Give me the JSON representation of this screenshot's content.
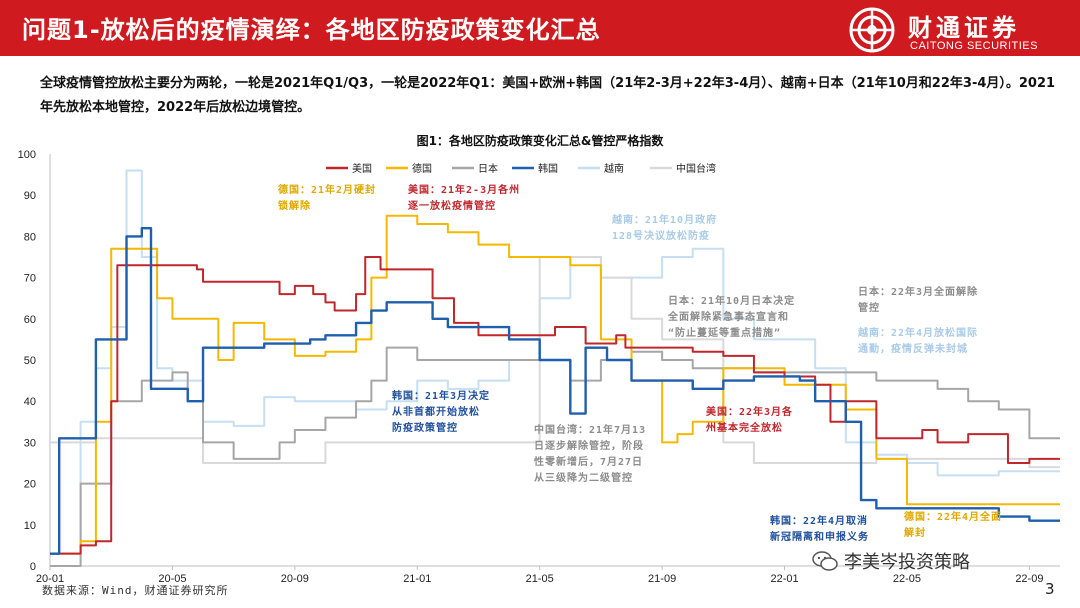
{
  "header": {
    "title": "问题1-放松后的疫情演绎：各地区防疫政策变化汇总",
    "logo_name": "财通证券",
    "logo_en": "CAITONG SECURITIES"
  },
  "summary": "全球疫情管控放松主要分为两轮，一轮是2021年Q1/Q3，一轮是2022年Q1：美国+欧洲+韩国（21年2-3月+22年3-4月）、越南+日本（21年10月和22年3-4月）。2021年先放松本地管控，2022年后放松边境管控。",
  "colors": {
    "header_bg": "#cf1a1f",
    "usa": "#c0272d",
    "germany": "#f5b800",
    "japan": "#a6a6a6",
    "korea": "#1f5fad",
    "vietnam": "#c6dff3",
    "taiwan": "#d9d9d9",
    "annotation_red": "#c0272d",
    "annotation_gold": "#e0a800",
    "annotation_gray": "#8c8c8c",
    "annotation_blue": "#1f4f9a",
    "annotation_lightblue": "#a9cbe8"
  },
  "chart_data": {
    "type": "line",
    "title": "图1：各地区防疫政策变化汇总&管控严格指数",
    "x_ticks": [
      "20-01",
      "20-05",
      "20-09",
      "21-01",
      "21-05",
      "21-09",
      "22-01",
      "22-05",
      "22-09"
    ],
    "ylim": [
      0,
      100
    ],
    "y_ticks": [
      "0",
      "10",
      "20",
      "30",
      "40",
      "50",
      "60",
      "70",
      "80",
      "90",
      "100"
    ],
    "x_range_months": [
      "2020-01",
      "2022-10"
    ],
    "grid": false,
    "legend_position": "top",
    "series": [
      {
        "name": "美国",
        "color_key": "usa",
        "points": [
          [
            0,
            3
          ],
          [
            1,
            5
          ],
          [
            1.5,
            6
          ],
          [
            2,
            40
          ],
          [
            2.2,
            73
          ],
          [
            4,
            73
          ],
          [
            4.8,
            72
          ],
          [
            5,
            69
          ],
          [
            7,
            69
          ],
          [
            7.5,
            66
          ],
          [
            8,
            68
          ],
          [
            8.6,
            66
          ],
          [
            9,
            64
          ],
          [
            9.3,
            62
          ],
          [
            9.8,
            62
          ],
          [
            10,
            66
          ],
          [
            10.3,
            75
          ],
          [
            10.8,
            72
          ],
          [
            12,
            72
          ],
          [
            12.5,
            65
          ],
          [
            13.2,
            59
          ],
          [
            14,
            56
          ],
          [
            16,
            56
          ],
          [
            16.5,
            58
          ],
          [
            17.5,
            54
          ],
          [
            18.5,
            56
          ],
          [
            18.8,
            53
          ],
          [
            20,
            53
          ],
          [
            21,
            52
          ],
          [
            22,
            51
          ],
          [
            23,
            47
          ],
          [
            24,
            46
          ],
          [
            25,
            44
          ],
          [
            25.5,
            35
          ],
          [
            26,
            40
          ],
          [
            27,
            31
          ],
          [
            28,
            31
          ],
          [
            28.5,
            33
          ],
          [
            29,
            30
          ],
          [
            30,
            32
          ],
          [
            31,
            32
          ],
          [
            31.3,
            25
          ],
          [
            32,
            26
          ],
          [
            33,
            26
          ]
        ]
      },
      {
        "name": "德国",
        "color_key": "germany",
        "points": [
          [
            0,
            3
          ],
          [
            1,
            6
          ],
          [
            1.5,
            35
          ],
          [
            2,
            77
          ],
          [
            3,
            77
          ],
          [
            3.5,
            65
          ],
          [
            4,
            60
          ],
          [
            5,
            60
          ],
          [
            5.5,
            50
          ],
          [
            6,
            59
          ],
          [
            7,
            55
          ],
          [
            8,
            51
          ],
          [
            9,
            52
          ],
          [
            10,
            55
          ],
          [
            10.5,
            70
          ],
          [
            11,
            85
          ],
          [
            12,
            83
          ],
          [
            13,
            81
          ],
          [
            14,
            78
          ],
          [
            15,
            75
          ],
          [
            16,
            75
          ],
          [
            17,
            73
          ],
          [
            18,
            55
          ],
          [
            19,
            45
          ],
          [
            20,
            30
          ],
          [
            20.5,
            32
          ],
          [
            21,
            35
          ],
          [
            22,
            48
          ],
          [
            23,
            48
          ],
          [
            24,
            44
          ],
          [
            25,
            44
          ],
          [
            26,
            38
          ],
          [
            27,
            26
          ],
          [
            28,
            15
          ],
          [
            32,
            15
          ],
          [
            32.5,
            15
          ],
          [
            33,
            15
          ]
        ]
      },
      {
        "name": "日本",
        "color_key": "japan",
        "points": [
          [
            0,
            0
          ],
          [
            1,
            20
          ],
          [
            2,
            40
          ],
          [
            3,
            45
          ],
          [
            4,
            47
          ],
          [
            4.5,
            40
          ],
          [
            5,
            30
          ],
          [
            6,
            26
          ],
          [
            7,
            26
          ],
          [
            7.5,
            30
          ],
          [
            8,
            33
          ],
          [
            9,
            36
          ],
          [
            10,
            40
          ],
          [
            10.5,
            45
          ],
          [
            11,
            53
          ],
          [
            12,
            50
          ],
          [
            13,
            50
          ],
          [
            14,
            50
          ],
          [
            15,
            50
          ],
          [
            16,
            50
          ],
          [
            17,
            45
          ],
          [
            18,
            50
          ],
          [
            19,
            52
          ],
          [
            20,
            50
          ],
          [
            21,
            48
          ],
          [
            22,
            48
          ],
          [
            23,
            47
          ],
          [
            24,
            47
          ],
          [
            25,
            47
          ],
          [
            26,
            47
          ],
          [
            27,
            45
          ],
          [
            28,
            45
          ],
          [
            29,
            43
          ],
          [
            30,
            40
          ],
          [
            31,
            38
          ],
          [
            32,
            31
          ],
          [
            33,
            31
          ]
        ]
      },
      {
        "name": "韩国",
        "color_key": "korea",
        "points": [
          [
            0,
            3
          ],
          [
            0.3,
            31
          ],
          [
            1,
            31
          ],
          [
            1.5,
            55
          ],
          [
            2.2,
            55
          ],
          [
            2.5,
            80
          ],
          [
            3,
            82
          ],
          [
            3.3,
            43
          ],
          [
            4,
            43
          ],
          [
            4.5,
            40
          ],
          [
            5,
            53
          ],
          [
            6,
            53
          ],
          [
            7,
            54
          ],
          [
            8,
            54
          ],
          [
            8.5,
            55
          ],
          [
            9,
            56
          ],
          [
            10,
            59
          ],
          [
            10.5,
            62
          ],
          [
            11,
            64
          ],
          [
            12,
            64
          ],
          [
            12.5,
            60
          ],
          [
            13,
            58
          ],
          [
            14,
            58
          ],
          [
            15,
            55
          ],
          [
            16,
            50
          ],
          [
            17,
            37
          ],
          [
            17.5,
            53
          ],
          [
            18.2,
            50
          ],
          [
            19,
            45
          ],
          [
            20,
            45
          ],
          [
            21,
            43
          ],
          [
            22,
            45
          ],
          [
            23,
            46
          ],
          [
            24,
            46
          ],
          [
            24.5,
            45
          ],
          [
            25,
            40
          ],
          [
            26,
            35
          ],
          [
            26.5,
            16
          ],
          [
            27,
            14
          ],
          [
            30,
            14
          ],
          [
            31,
            12
          ],
          [
            32,
            11
          ],
          [
            33,
            11
          ]
        ]
      },
      {
        "name": "越南",
        "color_key": "vietnam",
        "points": [
          [
            0,
            3
          ],
          [
            1,
            35
          ],
          [
            1.5,
            48
          ],
          [
            2,
            58
          ],
          [
            2.5,
            96
          ],
          [
            3,
            75
          ],
          [
            3.5,
            48
          ],
          [
            4,
            45
          ],
          [
            5,
            35
          ],
          [
            6,
            34
          ],
          [
            7,
            41
          ],
          [
            8,
            40
          ],
          [
            9,
            40
          ],
          [
            10,
            38
          ],
          [
            11,
            40
          ],
          [
            12,
            45
          ],
          [
            13,
            43
          ],
          [
            14,
            45
          ],
          [
            15,
            50
          ],
          [
            16,
            65
          ],
          [
            17,
            75
          ],
          [
            18,
            70
          ],
          [
            19,
            70
          ],
          [
            20,
            75
          ],
          [
            21,
            77
          ],
          [
            22,
            60
          ],
          [
            23,
            55
          ],
          [
            24,
            55
          ],
          [
            25,
            48
          ],
          [
            26,
            30
          ],
          [
            27,
            27
          ],
          [
            28,
            25
          ],
          [
            29,
            22
          ],
          [
            30,
            22
          ],
          [
            31,
            23
          ],
          [
            32,
            23
          ],
          [
            33,
            23
          ]
        ]
      },
      {
        "name": "中国台湾",
        "color_key": "taiwan",
        "points": [
          [
            0,
            30
          ],
          [
            1,
            30
          ],
          [
            1.5,
            31
          ],
          [
            3,
            31
          ],
          [
            4,
            31
          ],
          [
            5,
            25
          ],
          [
            7,
            25
          ],
          [
            8,
            25
          ],
          [
            9,
            30
          ],
          [
            10,
            30
          ],
          [
            11,
            30
          ],
          [
            12,
            30
          ],
          [
            13,
            30
          ],
          [
            14,
            30
          ],
          [
            15,
            30
          ],
          [
            16,
            75
          ],
          [
            17,
            75
          ],
          [
            18,
            70
          ],
          [
            19,
            60
          ],
          [
            20,
            55
          ],
          [
            21,
            55
          ],
          [
            22,
            30
          ],
          [
            23,
            25
          ],
          [
            24,
            25
          ],
          [
            25,
            25
          ],
          [
            26,
            25
          ],
          [
            27,
            26
          ],
          [
            28,
            26
          ],
          [
            29,
            26
          ],
          [
            30,
            26
          ],
          [
            31,
            26
          ],
          [
            32,
            24
          ],
          [
            33,
            24
          ]
        ]
      }
    ],
    "annotations": [
      {
        "text": "德国：21年2月硬封\n锁解除",
        "color_key": "annotation_gold"
      },
      {
        "text": "美国：21年2-3月各州\n逐一放松疫情管控",
        "color_key": "annotation_red"
      },
      {
        "text": "越南：21年10月政府\n128号决议放松防疫",
        "color_key": "annotation_lightblue"
      },
      {
        "text": "日本：21年10月日本决定\n全面解除紧急事态宣言和\n“防止蔓延等重点措施”",
        "color_key": "annotation_gray"
      },
      {
        "text": "日本：22年3月全面解除\n管控",
        "color_key": "annotation_gray"
      },
      {
        "text": "越南：22年4月放松国际\n通勤，疫情反弹未封城",
        "color_key": "annotation_lightblue"
      },
      {
        "text": "韩国：21年3月决定\n从非首都开始放松\n防疫政策管控",
        "color_key": "annotation_blue"
      },
      {
        "text": "中国台湾：21年7月13\n日逐步解除管控，阶段\n性零新增后，7月27日\n从三级降为二级管控",
        "color_key": "annotation_gray"
      },
      {
        "text": "美国：22年3月各\n州基本完全放松",
        "color_key": "annotation_red"
      },
      {
        "text": "韩国：22年4月取消\n新冠隔离和申报义务",
        "color_key": "annotation_blue"
      },
      {
        "text": "德国：22年4月全面\n解封",
        "color_key": "annotation_gold"
      }
    ]
  },
  "source": "数据来源：Wind，财通证券研究所",
  "watermark": "李美岑投资策略",
  "page_number": "3"
}
